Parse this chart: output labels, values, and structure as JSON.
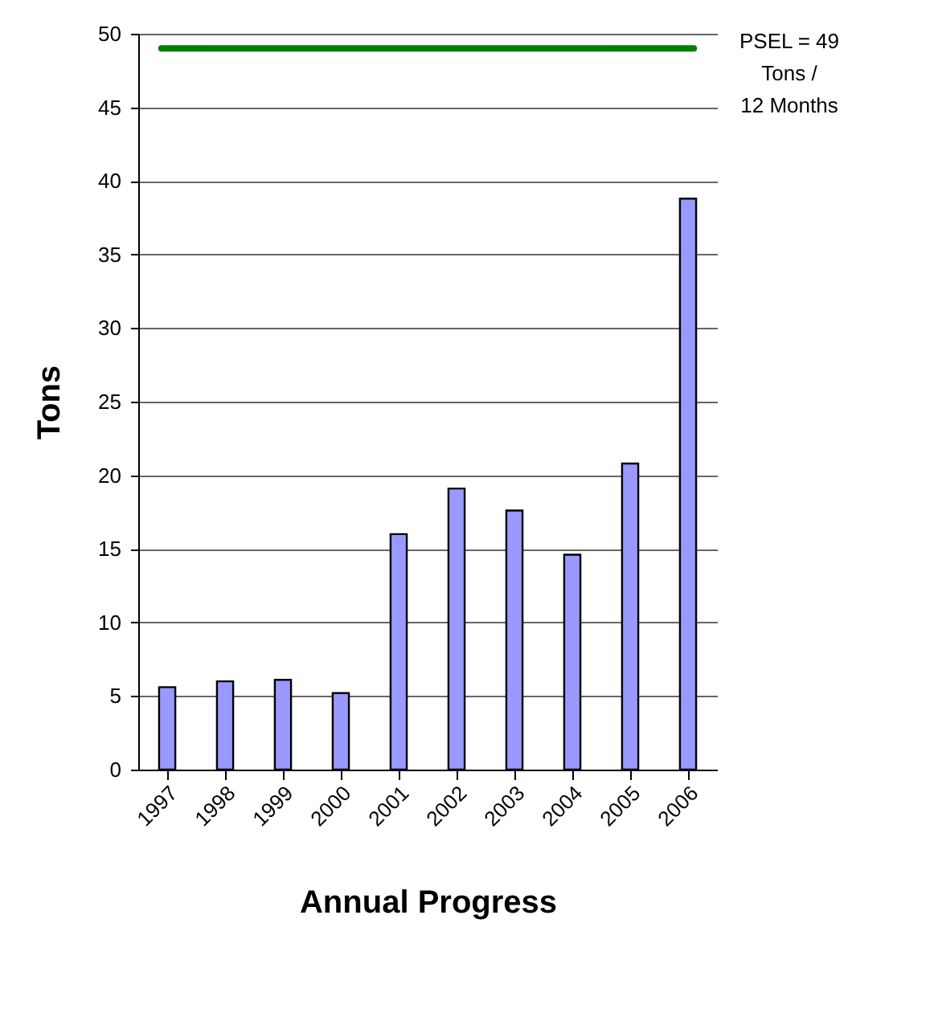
{
  "chart_data": {
    "type": "bar",
    "xlabel": "Annual Progress",
    "ylabel": "Tons",
    "categories": [
      "1997",
      "1998",
      "1999",
      "2000",
      "2001",
      "2002",
      "2003",
      "2004",
      "2005",
      "2006"
    ],
    "values": [
      5.6,
      6.0,
      6.1,
      5.2,
      16.0,
      19.1,
      17.6,
      14.6,
      20.8,
      38.8
    ],
    "color": "#9999ff",
    "ylim": [
      0,
      50
    ],
    "yticks": [
      0,
      5,
      10,
      15,
      20,
      25,
      30,
      35,
      40,
      45,
      50
    ],
    "grid": "y",
    "ref_lines": [
      {
        "axis": "y",
        "value": 49,
        "label": "PSEL = 49\nTons /\n12 Months",
        "color": "#008000"
      }
    ]
  }
}
